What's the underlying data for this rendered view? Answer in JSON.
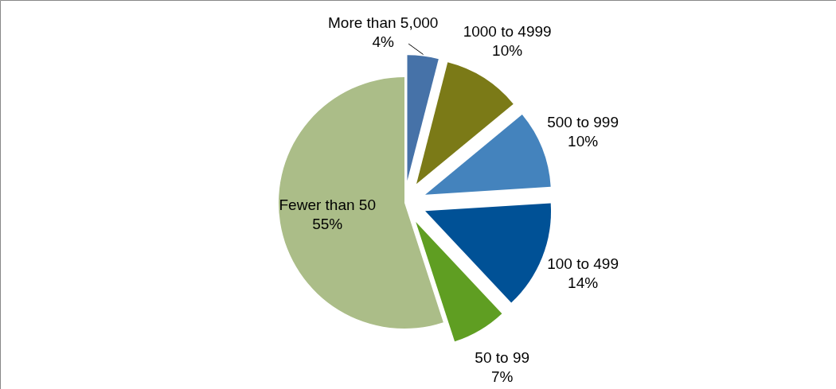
{
  "chart_data": {
    "type": "pie",
    "categories": [
      "More than 5,000",
      "1000 to 4999",
      "500 to 999",
      "100 to 499",
      "50 to 99",
      "Fewer than 50"
    ],
    "values": [
      4,
      10,
      10,
      14,
      7,
      55
    ],
    "value_labels": [
      "4%",
      "10%",
      "10%",
      "14%",
      "7%",
      "55%"
    ],
    "colors": [
      "#4672a8",
      "#7b7a17",
      "#4483bd",
      "#005196",
      "#5f9e22",
      "#abbd88"
    ]
  }
}
